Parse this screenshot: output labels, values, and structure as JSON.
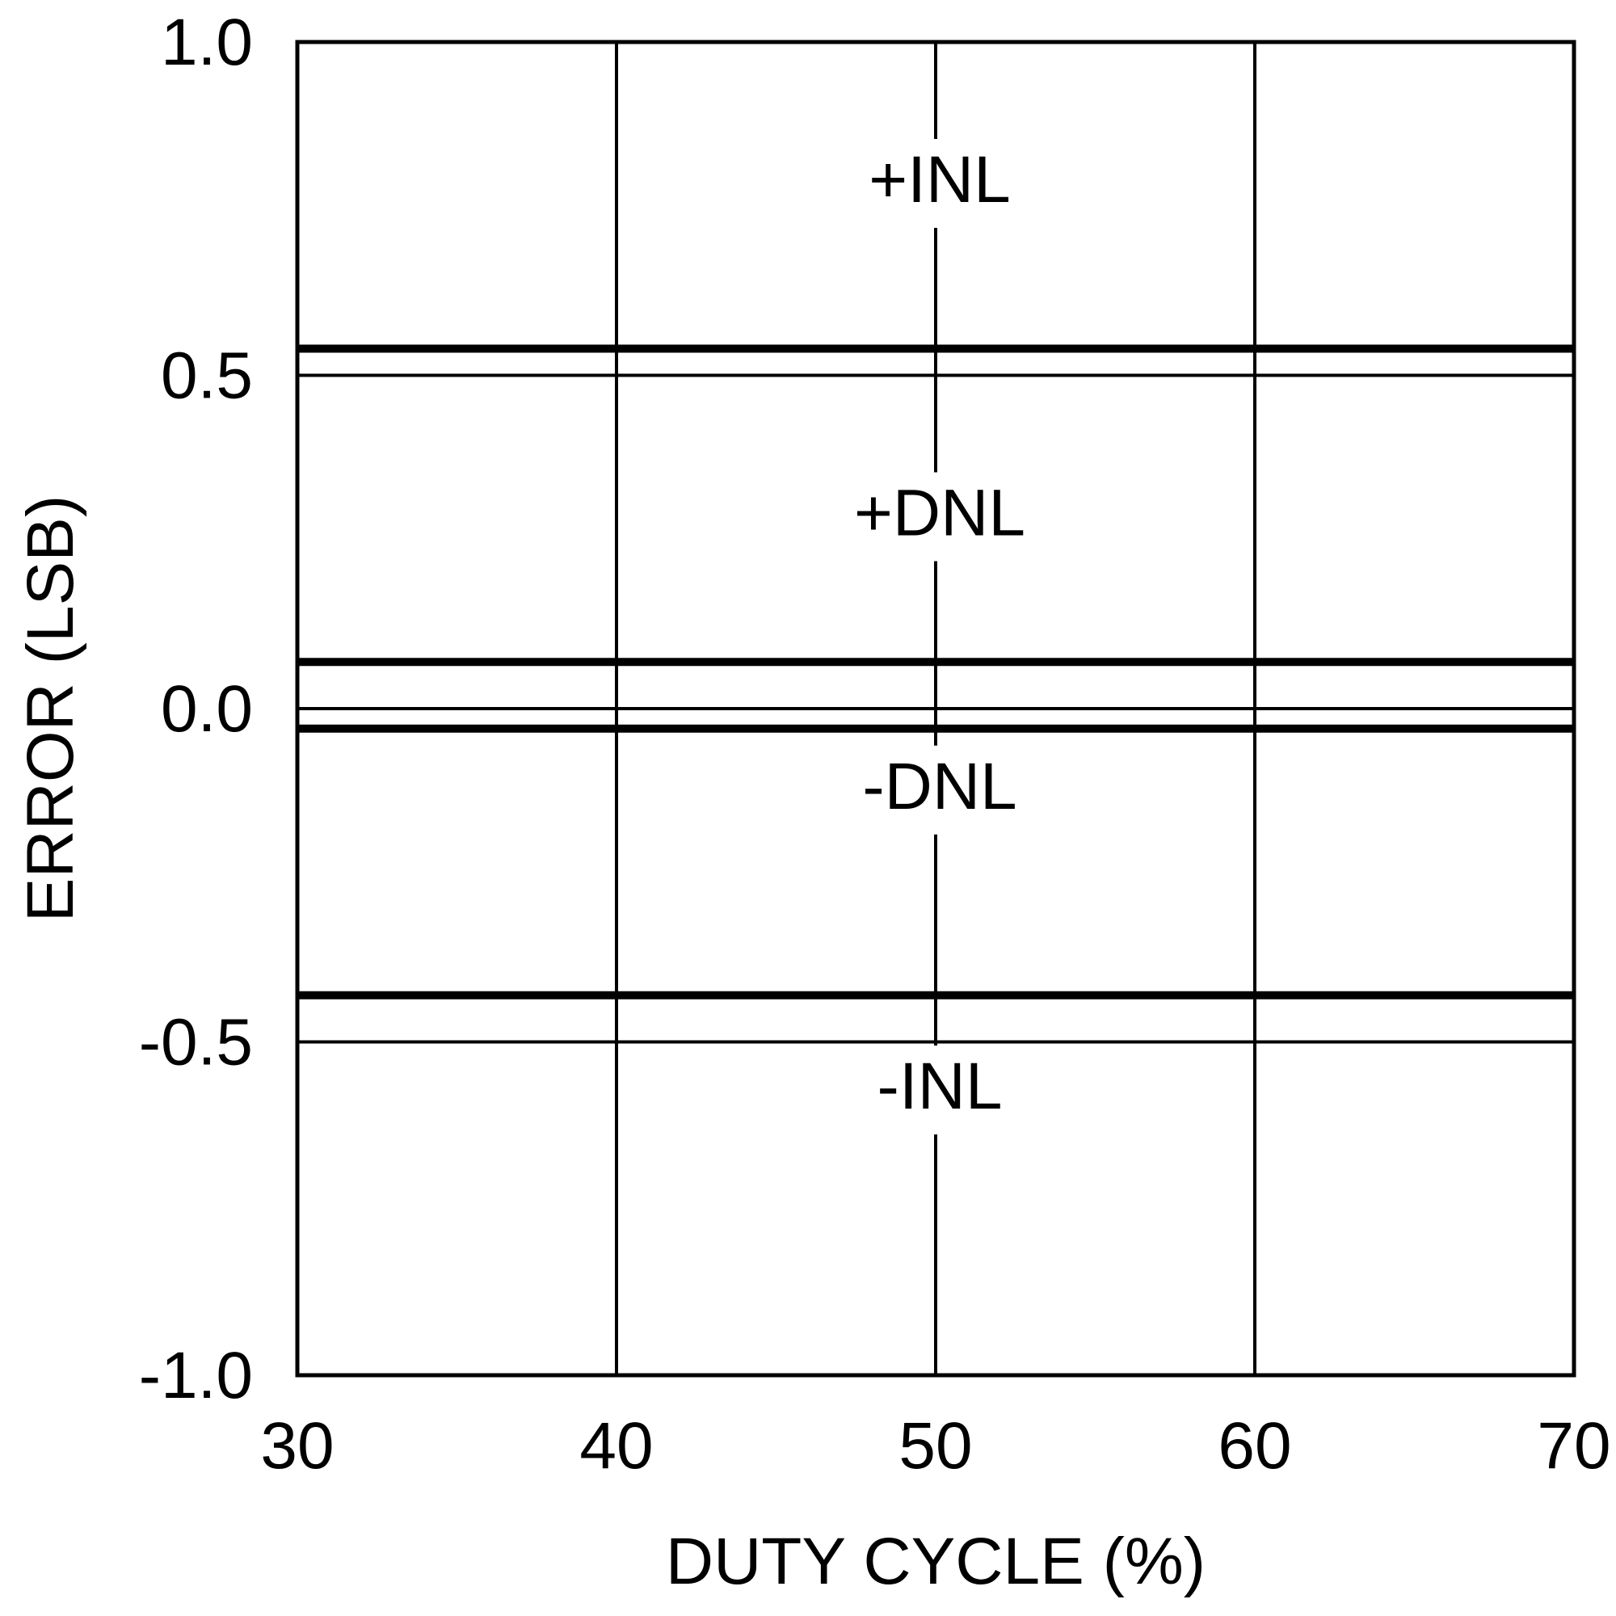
{
  "chart_data": {
    "type": "line",
    "title": "",
    "xlabel": "DUTY CYCLE (%)",
    "ylabel": "ERROR (LSB)",
    "xlim": [
      30,
      70
    ],
    "ylim": [
      -1.0,
      1.0
    ],
    "x_ticks": [
      30,
      40,
      50,
      60,
      70
    ],
    "x_tick_labels": [
      "30",
      "40",
      "50",
      "60",
      "70"
    ],
    "y_ticks": [
      1.0,
      0.5,
      0.0,
      -0.5,
      -1.0
    ],
    "y_tick_labels": [
      "1.0",
      "0.5",
      "0.0",
      "-0.5",
      "-1.0"
    ],
    "grid": true,
    "legend": "none",
    "line_color": "#000000",
    "x": [
      30,
      40,
      50,
      60,
      70
    ],
    "series": [
      {
        "name": "+INL",
        "values": [
          0.54,
          0.54,
          0.54,
          0.54,
          0.54
        ],
        "label_y": 0.76
      },
      {
        "name": "+DNL",
        "values": [
          0.07,
          0.07,
          0.07,
          0.07,
          0.07
        ],
        "label_y": 0.26
      },
      {
        "name": "-DNL",
        "values": [
          -0.03,
          -0.03,
          -0.03,
          -0.03,
          -0.03
        ],
        "label_y": -0.15
      },
      {
        "name": "-INL",
        "values": [
          -0.43,
          -0.43,
          -0.43,
          -0.43,
          -0.43
        ],
        "label_y": -0.6
      }
    ]
  }
}
